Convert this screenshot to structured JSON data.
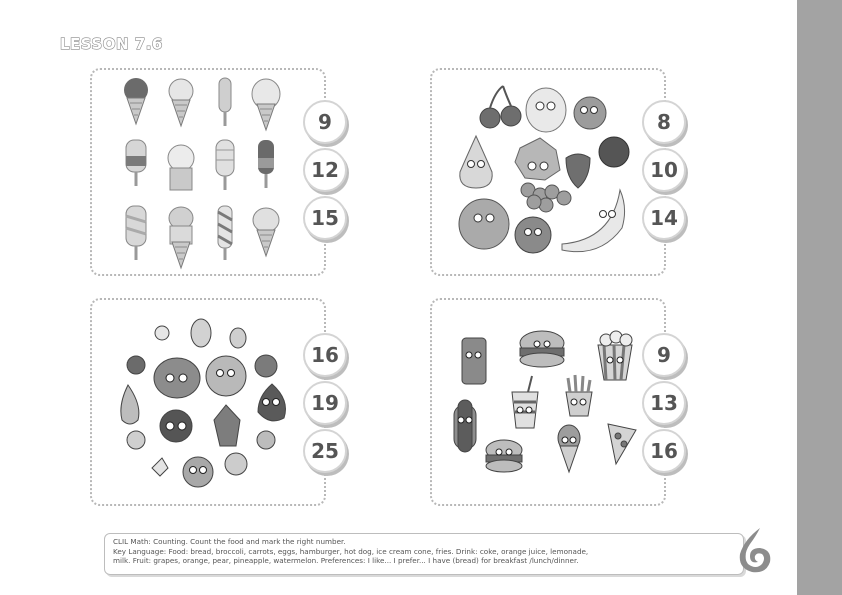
{
  "lesson_title": "LESSON 7.6",
  "panels": [
    {
      "name": "ice-creams",
      "choices": [
        "9",
        "12",
        "15"
      ]
    },
    {
      "name": "fruits",
      "choices": [
        "8",
        "10",
        "14"
      ]
    },
    {
      "name": "fruit-characters",
      "choices": [
        "16",
        "19",
        "25"
      ]
    },
    {
      "name": "fast-food",
      "choices": [
        "9",
        "13",
        "16"
      ]
    }
  ],
  "footer": {
    "line1": "CLIL Math: Counting. Count the food and mark the right number.",
    "line2": "Key Language: Food: bread, broccoli, carrots, eggs, hamburger, hot dog, ice cream cone, fries. Drink: coke, orange juice, lemonade,",
    "line3": "milk. Fruit: grapes, orange, pear, pineapple, watermelon. Preferences: I like... I prefer... I have (bread) for breakfast /lunch/dinner."
  }
}
